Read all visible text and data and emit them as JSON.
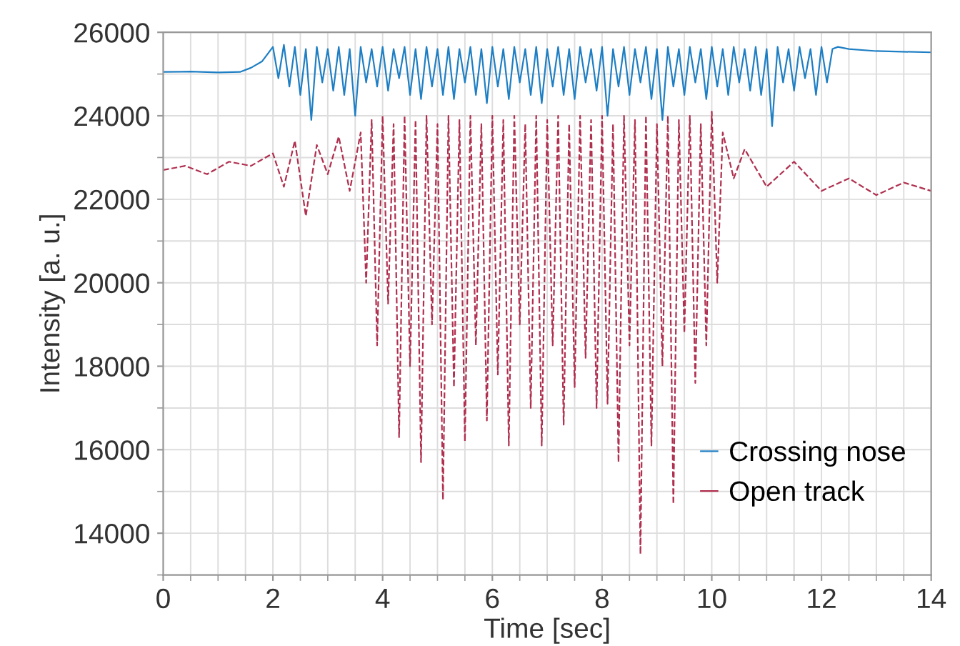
{
  "chart_data": {
    "type": "line",
    "xlabel": "Time [sec]",
    "ylabel": "Intensity [a. u.]",
    "xlim": [
      0,
      14
    ],
    "xticks": [
      0,
      2,
      4,
      6,
      8,
      10,
      12,
      14
    ],
    "ylim": [
      13000,
      26000
    ],
    "yticks": [
      14000,
      16000,
      18000,
      20000,
      22000,
      24000,
      26000
    ],
    "grid": true,
    "legend": "bottom right",
    "marker": "none",
    "series": [
      {
        "name": "Crossing nose",
        "color": "#1f7fc4",
        "line_style": "solid",
        "x": [
          0,
          0.5,
          1,
          1.4,
          1.6,
          1.8,
          2.0,
          2.1,
          2.2,
          2.3,
          2.4,
          2.5,
          2.6,
          2.7,
          2.8,
          2.9,
          3.0,
          3.1,
          3.2,
          3.3,
          3.4,
          3.5,
          3.6,
          3.7,
          3.8,
          3.9,
          4.0,
          4.1,
          4.2,
          4.3,
          4.4,
          4.5,
          4.6,
          4.7,
          4.8,
          4.9,
          5.0,
          5.1,
          5.2,
          5.3,
          5.4,
          5.5,
          5.6,
          5.7,
          5.8,
          5.9,
          6.0,
          6.1,
          6.2,
          6.3,
          6.4,
          6.5,
          6.6,
          6.7,
          6.8,
          6.9,
          7.0,
          7.1,
          7.2,
          7.3,
          7.4,
          7.5,
          7.6,
          7.7,
          7.8,
          7.9,
          8.0,
          8.1,
          8.2,
          8.3,
          8.4,
          8.5,
          8.6,
          8.7,
          8.8,
          8.9,
          9.0,
          9.1,
          9.2,
          9.3,
          9.4,
          9.5,
          9.6,
          9.7,
          9.8,
          9.9,
          10.0,
          10.1,
          10.2,
          10.3,
          10.4,
          10.5,
          10.6,
          10.7,
          10.8,
          10.9,
          11.0,
          11.1,
          11.2,
          11.3,
          11.4,
          11.5,
          11.6,
          11.7,
          11.8,
          11.9,
          12.0,
          12.1,
          12.2,
          12.3,
          12.5,
          13,
          14
        ],
        "values": [
          25050,
          25060,
          25040,
          25050,
          25150,
          25300,
          25650,
          24900,
          25700,
          24700,
          25650,
          24500,
          25600,
          23900,
          25650,
          24800,
          25600,
          24600,
          25650,
          24500,
          25600,
          24000,
          25650,
          24800,
          25600,
          24700,
          25650,
          24600,
          25600,
          24900,
          25650,
          24500,
          25600,
          24400,
          25650,
          24700,
          25600,
          24500,
          25650,
          24400,
          25600,
          24800,
          25650,
          24500,
          25600,
          24300,
          25650,
          24700,
          25600,
          24400,
          25650,
          24800,
          25600,
          24500,
          25650,
          24300,
          25600,
          24700,
          25650,
          24500,
          25600,
          24400,
          25650,
          24800,
          25600,
          24600,
          25650,
          24000,
          25600,
          24700,
          25650,
          24500,
          25600,
          24800,
          25650,
          24400,
          25600,
          23900,
          25650,
          24700,
          25600,
          24500,
          25650,
          24800,
          25600,
          24400,
          25650,
          24700,
          25600,
          24500,
          25650,
          24800,
          25600,
          24600,
          25650,
          24500,
          25600,
          23750,
          25650,
          24800,
          25600,
          24600,
          25650,
          24900,
          25600,
          24500,
          25650,
          24800,
          25600,
          25650,
          25600,
          25550,
          25520
        ]
      },
      {
        "name": "Open track",
        "color": "#b0304f",
        "line_style": "dashed",
        "x": [
          0,
          0.4,
          0.8,
          1.2,
          1.6,
          2.0,
          2.2,
          2.4,
          2.6,
          2.8,
          3.0,
          3.2,
          3.4,
          3.6,
          3.7,
          3.8,
          3.9,
          4.0,
          4.1,
          4.2,
          4.3,
          4.4,
          4.5,
          4.6,
          4.7,
          4.8,
          4.9,
          5.0,
          5.1,
          5.2,
          5.3,
          5.4,
          5.5,
          5.6,
          5.7,
          5.8,
          5.9,
          6.0,
          6.1,
          6.2,
          6.3,
          6.4,
          6.5,
          6.6,
          6.7,
          6.8,
          6.9,
          7.0,
          7.1,
          7.2,
          7.3,
          7.4,
          7.5,
          7.6,
          7.7,
          7.8,
          7.9,
          8.0,
          8.1,
          8.2,
          8.3,
          8.4,
          8.5,
          8.6,
          8.7,
          8.8,
          8.9,
          9.0,
          9.1,
          9.2,
          9.3,
          9.4,
          9.5,
          9.6,
          9.7,
          9.8,
          9.9,
          10.0,
          10.1,
          10.2,
          10.4,
          10.6,
          11,
          11.5,
          12,
          12.5,
          13,
          13.5,
          14
        ],
        "values": [
          22700,
          22800,
          22600,
          22900,
          22800,
          23100,
          22300,
          23400,
          21600,
          23300,
          22600,
          23500,
          22200,
          23600,
          20000,
          23900,
          18500,
          24000,
          19500,
          23800,
          16300,
          24000,
          18000,
          23900,
          15700,
          24000,
          19000,
          23800,
          14800,
          24000,
          17500,
          23900,
          16200,
          24000,
          18500,
          23800,
          16700,
          24000,
          17800,
          23900,
          16100,
          24000,
          19000,
          23800,
          17000,
          24000,
          16100,
          23900,
          18500,
          24000,
          16600,
          23800,
          17500,
          24000,
          18200,
          23900,
          17000,
          24000,
          17100,
          23800,
          15700,
          24000,
          18500,
          23900,
          13500,
          24000,
          16100,
          23800,
          18000,
          24000,
          14700,
          23900,
          18800,
          24000,
          17600,
          23800,
          18500,
          24100,
          20000,
          23600,
          22500,
          23200,
          22300,
          22900,
          22200,
          22500,
          22100,
          22400,
          22200
        ]
      }
    ]
  }
}
